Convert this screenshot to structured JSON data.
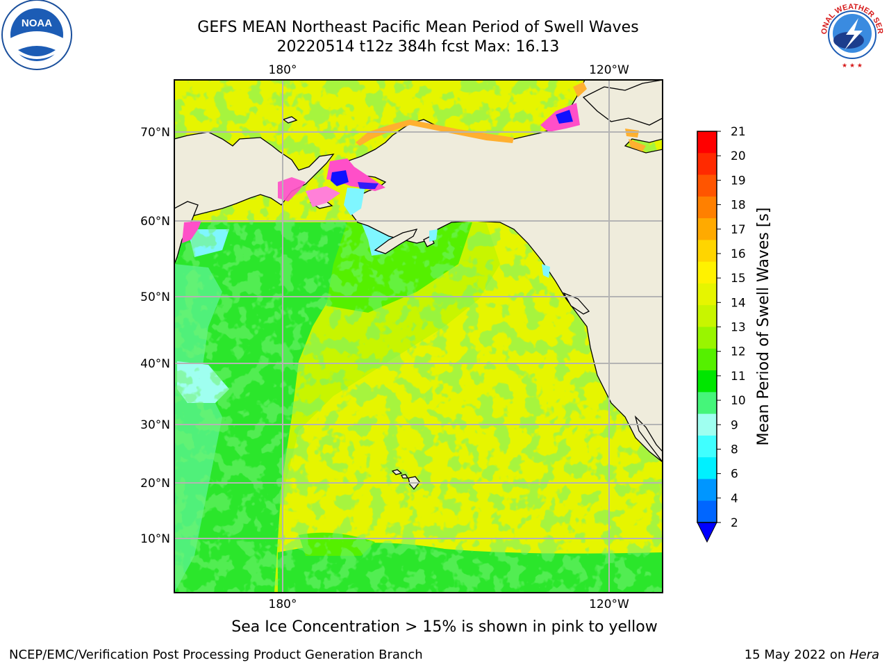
{
  "header": {
    "title_line1": "GEFS MEAN Northeast Pacific Mean Period of Swell Waves",
    "title_line2": "20220514 t12z 384h fcst   Max: 16.13"
  },
  "map": {
    "top_lon_labels": [
      "180°",
      "120°W"
    ],
    "bottom_lon_labels": [
      "180°",
      "120°W"
    ],
    "lat_labels": [
      "70°N",
      "60°N",
      "50°N",
      "40°N",
      "30°N",
      "20°N",
      "10°N"
    ],
    "colors": {
      "land": "#efecdc",
      "coast": "#000000",
      "grid": "#b4b4b4",
      "ocean_green": "#2be62b",
      "ocean_yellowgreen": "#c8f500",
      "ocean_yellow": "#ecf500",
      "ocean_mint": "#50f07a",
      "ice_pink": "#ff4fc8",
      "ice_blue": "#1010ff",
      "ice_orange": "#ffb030",
      "ice_cyan": "#7ff6ff"
    }
  },
  "colorbar": {
    "label": "Mean Period of Swell Waves [s]",
    "tick_labels": [
      "21",
      "20",
      "19",
      "18",
      "17",
      "16",
      "15",
      "14",
      "13",
      "12",
      "11",
      "10",
      "9",
      "8",
      "6",
      "4",
      "2"
    ],
    "colors": [
      "#ff0000",
      "#ff2a00",
      "#ff5500",
      "#ff8000",
      "#ffaa00",
      "#ffd500",
      "#fff200",
      "#e6f500",
      "#c8f500",
      "#99f500",
      "#55f000",
      "#00e600",
      "#45f57a",
      "#9ffff0",
      "#40ffff",
      "#00f0ff",
      "#0096ff",
      "#0066ff"
    ],
    "extend_color": "#0000ff"
  },
  "footer": {
    "note": "Sea Ice Concentration > 15% is shown in pink to yellow",
    "credit": "NCEP/EMC/Verification Post Processing Product Generation Branch",
    "date_prefix": "15 May 2022 on ",
    "date_host": "Hera"
  },
  "logos": {
    "noaa_text": "NOAA",
    "nws_text": "NATIONAL WEATHER SERVICE"
  }
}
